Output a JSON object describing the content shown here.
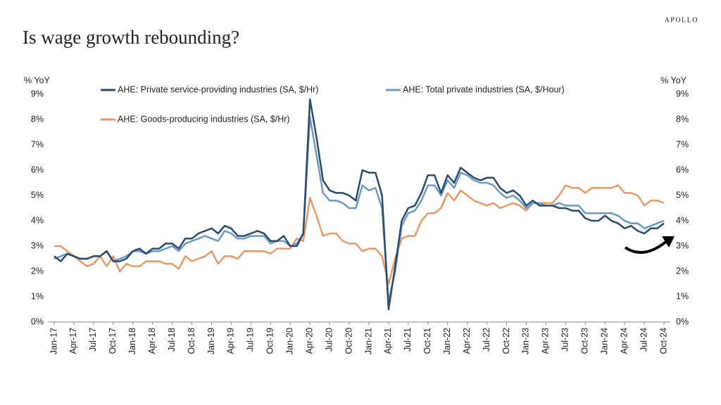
{
  "brand": "APOLLO",
  "chart_data": {
    "type": "line",
    "title": "Is wage growth rebounding?",
    "ylabel": "% YoY",
    "y2label": "% YoY",
    "categories": [
      "Jan-17",
      null,
      null,
      "Apr-17",
      null,
      null,
      "Jul-17",
      null,
      null,
      "Oct-17",
      null,
      null,
      "Jan-18",
      null,
      null,
      "Apr-18",
      null,
      null,
      "Jul-18",
      null,
      null,
      "Oct-18",
      null,
      null,
      "Jan-19",
      null,
      null,
      "Apr-19",
      null,
      null,
      "Jul-19",
      null,
      null,
      "Oct-19",
      null,
      null,
      "Jan-20",
      null,
      null,
      "Apr-20",
      null,
      null,
      "Jul-20",
      null,
      null,
      "Oct-20",
      null,
      null,
      "Jan-21",
      null,
      null,
      "Apr-21",
      null,
      null,
      "Jul-21",
      null,
      null,
      "Oct-21",
      null,
      null,
      "Jan-22",
      null,
      null,
      "Apr-22",
      null,
      null,
      "Jul-22",
      null,
      null,
      "Oct-22",
      null,
      null,
      "Jan-23",
      null,
      null,
      "Apr-23",
      null,
      null,
      "Jul-23",
      null,
      null,
      "Oct-23",
      null,
      null,
      "Jan-24",
      null,
      null,
      "Apr-24",
      null,
      null,
      "Jul-24",
      null,
      null,
      "Oct-24"
    ],
    "series": [
      {
        "name": "AHE: Private service-providing industries (SA, $/Hr)",
        "color": "#2c4a6b",
        "values": [
          2.6,
          2.4,
          2.7,
          2.6,
          2.5,
          2.5,
          2.6,
          2.6,
          2.8,
          2.4,
          2.4,
          2.5,
          2.8,
          2.9,
          2.7,
          2.9,
          2.9,
          3.1,
          3.1,
          2.9,
          3.3,
          3.3,
          3.5,
          3.6,
          3.7,
          3.5,
          3.8,
          3.7,
          3.4,
          3.4,
          3.5,
          3.6,
          3.5,
          3.2,
          3.2,
          3.4,
          3.0,
          3.0,
          3.5,
          8.8,
          7.3,
          5.6,
          5.2,
          5.1,
          5.1,
          5.0,
          4.8,
          6.0,
          5.9,
          5.9,
          5.0,
          0.5,
          2.2,
          4.0,
          4.5,
          4.6,
          5.1,
          5.8,
          5.8,
          5.1,
          5.8,
          5.5,
          6.1,
          5.9,
          5.7,
          5.6,
          5.7,
          5.7,
          5.3,
          5.1,
          5.2,
          5.0,
          4.6,
          4.8,
          4.6,
          4.6,
          4.6,
          4.5,
          4.5,
          4.4,
          4.4,
          4.1,
          4.0,
          4.0,
          4.2,
          4.0,
          3.9,
          3.7,
          3.8,
          3.6,
          3.5,
          3.7,
          3.7,
          3.9
        ]
      },
      {
        "name": "AHE: Total private industries (SA, $/Hour)",
        "color": "#6d9ac4",
        "values": [
          2.5,
          2.6,
          2.7,
          2.6,
          2.5,
          2.5,
          2.6,
          2.6,
          2.8,
          2.4,
          2.5,
          2.6,
          2.8,
          2.8,
          2.7,
          2.8,
          2.8,
          2.9,
          3.0,
          2.8,
          3.1,
          3.2,
          3.3,
          3.4,
          3.3,
          3.2,
          3.6,
          3.5,
          3.3,
          3.3,
          3.4,
          3.4,
          3.4,
          3.1,
          3.2,
          3.2,
          3.0,
          3.1,
          3.5,
          8.1,
          6.6,
          5.1,
          4.8,
          4.8,
          4.7,
          4.5,
          4.5,
          5.4,
          5.2,
          5.3,
          4.5,
          0.8,
          2.0,
          3.8,
          4.3,
          4.4,
          4.8,
          5.4,
          5.4,
          5.0,
          5.6,
          5.3,
          5.9,
          5.8,
          5.6,
          5.5,
          5.5,
          5.4,
          5.1,
          4.9,
          5.0,
          4.8,
          4.5,
          4.7,
          4.7,
          4.6,
          4.6,
          4.7,
          4.6,
          4.6,
          4.6,
          4.3,
          4.3,
          4.3,
          4.3,
          4.3,
          4.2,
          4.0,
          3.9,
          3.9,
          3.7,
          3.8,
          3.9,
          4.0
        ]
      },
      {
        "name": "AHE: Goods-producing industries (SA, $/Hr)",
        "color": "#e59a6a",
        "values": [
          3.0,
          3.0,
          2.8,
          2.6,
          2.4,
          2.2,
          2.3,
          2.6,
          2.2,
          2.6,
          2.0,
          2.3,
          2.2,
          2.2,
          2.4,
          2.4,
          2.4,
          2.3,
          2.3,
          2.1,
          2.6,
          2.4,
          2.5,
          2.6,
          2.8,
          2.3,
          2.6,
          2.6,
          2.5,
          2.8,
          2.8,
          2.8,
          2.8,
          2.7,
          2.9,
          2.9,
          2.9,
          3.3,
          3.2,
          4.9,
          4.2,
          3.4,
          3.5,
          3.5,
          3.2,
          3.1,
          3.1,
          2.8,
          2.9,
          2.9,
          2.6,
          1.5,
          2.5,
          3.3,
          3.4,
          3.4,
          4.0,
          4.3,
          4.3,
          4.5,
          5.1,
          4.8,
          5.2,
          5.0,
          4.8,
          4.7,
          4.6,
          4.7,
          4.5,
          4.6,
          4.7,
          4.6,
          4.4,
          4.7,
          4.7,
          4.7,
          4.7,
          5.0,
          5.4,
          5.3,
          5.3,
          5.1,
          5.3,
          5.3,
          5.3,
          5.3,
          5.4,
          5.1,
          5.1,
          5.0,
          4.6,
          4.8,
          4.8,
          4.7
        ]
      }
    ],
    "ylim": [
      0,
      9
    ],
    "yticks": [
      {
        "value": 0,
        "label": "0%"
      },
      {
        "value": 1,
        "label": "1%"
      },
      {
        "value": 2,
        "label": "2%"
      },
      {
        "value": 3,
        "label": "3%"
      },
      {
        "value": 4,
        "label": "4%"
      },
      {
        "value": 5,
        "label": "5%"
      },
      {
        "value": 6,
        "label": "6%"
      },
      {
        "value": 7,
        "label": "7%"
      },
      {
        "value": 8,
        "label": "8%"
      },
      {
        "value": 9,
        "label": "9%"
      }
    ],
    "y2lim": [
      0,
      9
    ],
    "y2ticks": [
      {
        "value": 0,
        "label": "0%"
      },
      {
        "value": 1,
        "label": "1%"
      },
      {
        "value": 2,
        "label": "2%"
      },
      {
        "value": 3,
        "label": "3%"
      },
      {
        "value": 4,
        "label": "4%"
      },
      {
        "value": 5,
        "label": "5%"
      },
      {
        "value": 6,
        "label": "6%"
      },
      {
        "value": 7,
        "label": "7%"
      },
      {
        "value": 8,
        "label": "8%"
      },
      {
        "value": 9,
        "label": "9%"
      }
    ],
    "grid": false,
    "legend": "top"
  }
}
